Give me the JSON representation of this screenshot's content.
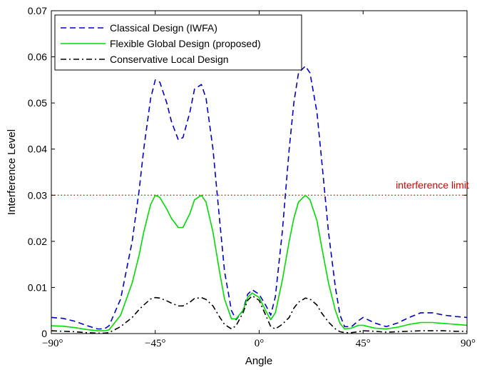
{
  "chart_data": {
    "type": "line",
    "title": "",
    "xlabel": "Angle",
    "ylabel": "Interference Level",
    "xlim": [
      -90,
      90
    ],
    "ylim": [
      0,
      0.07
    ],
    "grid": false,
    "legend_position": "top-left",
    "x_ticks": [
      -90,
      -45,
      0,
      45,
      90
    ],
    "x_tick_labels": [
      "−90°",
      "−45°",
      "0°",
      "45°",
      "90°"
    ],
    "y_ticks": [
      0,
      0.01,
      0.02,
      0.03,
      0.04,
      0.05,
      0.06,
      0.07
    ],
    "y_tick_labels": [
      "0",
      "0.01",
      "0.02",
      "0.03",
      "0.04",
      "0.05",
      "0.06",
      "0.07"
    ],
    "annotation": {
      "text": "interference limit",
      "x": 75,
      "y": 0.0305,
      "color": "#dd0000"
    },
    "limit_line": {
      "y": 0.03,
      "color": "#dd0000",
      "style": "dotted"
    },
    "series": [
      {
        "name": "Classical Design (IWFA)",
        "color": "#0000cc",
        "style": "dashed",
        "x": [
          -90,
          -85,
          -80,
          -75,
          -70,
          -67,
          -65,
          -60,
          -55,
          -52,
          -50,
          -47,
          -45,
          -43,
          -40,
          -38,
          -35,
          -33,
          -30,
          -28,
          -25,
          -23,
          -20,
          -17,
          -15,
          -12,
          -10,
          -7,
          -5,
          -3,
          0,
          3,
          5,
          7,
          10,
          13,
          15,
          17,
          20,
          22,
          25,
          27,
          30,
          33,
          35,
          37,
          40,
          43,
          45,
          50,
          55,
          60,
          65,
          70,
          75,
          80,
          85,
          90
        ],
        "y": [
          0.0035,
          0.0033,
          0.0027,
          0.0018,
          0.001,
          0.001,
          0.0017,
          0.0075,
          0.02,
          0.031,
          0.04,
          0.051,
          0.055,
          0.0545,
          0.05,
          0.046,
          0.042,
          0.0425,
          0.048,
          0.053,
          0.054,
          0.051,
          0.04,
          0.024,
          0.0135,
          0.005,
          0.003,
          0.005,
          0.0085,
          0.0095,
          0.0085,
          0.006,
          0.004,
          0.008,
          0.022,
          0.04,
          0.05,
          0.0565,
          0.058,
          0.0565,
          0.048,
          0.038,
          0.022,
          0.01,
          0.004,
          0.0015,
          0.0015,
          0.0028,
          0.0035,
          0.0023,
          0.0015,
          0.0023,
          0.0035,
          0.0045,
          0.0045,
          0.004,
          0.0037,
          0.0035
        ]
      },
      {
        "name": "Flexible Global Design (proposed)",
        "color": "#00dd00",
        "style": "solid",
        "x": [
          -90,
          -85,
          -80,
          -75,
          -70,
          -67,
          -65,
          -60,
          -55,
          -52,
          -50,
          -47,
          -45,
          -43,
          -40,
          -38,
          -35,
          -33,
          -30,
          -28,
          -25,
          -23,
          -20,
          -17,
          -15,
          -12,
          -10,
          -7,
          -5,
          -3,
          0,
          3,
          5,
          7,
          10,
          13,
          15,
          17,
          20,
          22,
          25,
          27,
          30,
          33,
          35,
          37,
          40,
          43,
          45,
          50,
          55,
          60,
          65,
          70,
          75,
          80,
          85,
          90
        ],
        "y": [
          0.0017,
          0.0016,
          0.0013,
          0.0009,
          0.0006,
          0.0006,
          0.0008,
          0.004,
          0.011,
          0.017,
          0.022,
          0.028,
          0.03,
          0.0295,
          0.027,
          0.025,
          0.023,
          0.023,
          0.026,
          0.029,
          0.03,
          0.0285,
          0.022,
          0.013,
          0.0075,
          0.0032,
          0.0032,
          0.005,
          0.0078,
          0.0088,
          0.0078,
          0.0048,
          0.003,
          0.0045,
          0.0115,
          0.02,
          0.025,
          0.0285,
          0.03,
          0.029,
          0.0245,
          0.019,
          0.011,
          0.005,
          0.0022,
          0.001,
          0.0012,
          0.0018,
          0.0018,
          0.0012,
          0.001,
          0.0014,
          0.002,
          0.0024,
          0.0024,
          0.0022,
          0.002,
          0.0018
        ]
      },
      {
        "name": "Conservative Local Design",
        "color": "#000000",
        "style": "dashdot",
        "x": [
          -90,
          -85,
          -80,
          -75,
          -70,
          -67,
          -65,
          -60,
          -55,
          -52,
          -50,
          -47,
          -45,
          -43,
          -40,
          -38,
          -35,
          -33,
          -30,
          -28,
          -25,
          -23,
          -20,
          -17,
          -15,
          -12,
          -10,
          -7,
          -5,
          -3,
          0,
          3,
          5,
          7,
          10,
          13,
          15,
          17,
          20,
          22,
          25,
          27,
          30,
          33,
          35,
          37,
          40,
          43,
          45,
          50,
          55,
          60,
          65,
          70,
          75,
          80,
          85,
          90
        ],
        "y": [
          0.0006,
          0.0005,
          0.0004,
          0.0002,
          0.0001,
          0.0001,
          0.0002,
          0.0015,
          0.0035,
          0.0052,
          0.0062,
          0.0075,
          0.0078,
          0.0077,
          0.0071,
          0.0066,
          0.006,
          0.006,
          0.0068,
          0.0076,
          0.0078,
          0.0074,
          0.006,
          0.0035,
          0.002,
          0.001,
          0.0017,
          0.0045,
          0.0072,
          0.0082,
          0.0072,
          0.0038,
          0.0015,
          0.001,
          0.002,
          0.0035,
          0.0055,
          0.0068,
          0.0077,
          0.0075,
          0.0062,
          0.0045,
          0.0025,
          0.001,
          0.0004,
          0.0002,
          0.0002,
          0.0004,
          0.0006,
          0.0005,
          0.0003,
          0.0004,
          0.0005,
          0.0006,
          0.0006,
          0.0006,
          0.0005,
          0.0005
        ]
      }
    ]
  }
}
